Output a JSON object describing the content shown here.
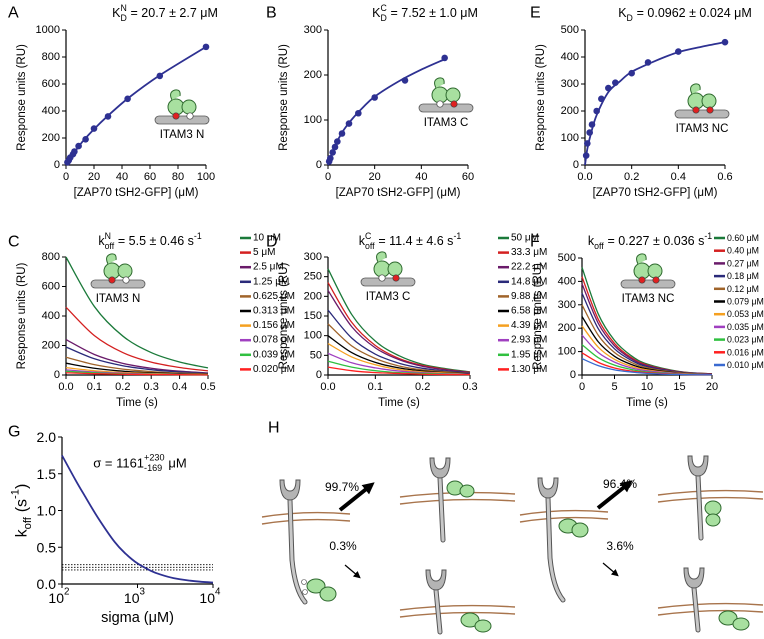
{
  "chart_data": [
    {
      "panel": "A",
      "type": "scatter",
      "title": {
        "symbol": "K",
        "sup": "N",
        "sub": "D",
        "value": "= 20.7 ± 2.7 μM"
      },
      "xlabel": "[ZAP70 tSH2-GFP] (μM)",
      "ylabel": "Response units (RU)",
      "inset_label": "ITAM3 N",
      "xlim": [
        0,
        100
      ],
      "xticks": [
        0,
        20,
        40,
        60,
        80,
        100
      ],
      "ylim": [
        0,
        1000
      ],
      "yticks": [
        0,
        200,
        400,
        600,
        800,
        1000
      ],
      "series": [
        {
          "style": "markers",
          "color": "#2e3192",
          "x": [
            1,
            2,
            3,
            5,
            6,
            9,
            14,
            20,
            30,
            44,
            67,
            100
          ],
          "values": [
            20,
            35,
            55,
            80,
            100,
            140,
            190,
            270,
            360,
            490,
            660,
            875
          ]
        },
        {
          "style": "line",
          "color": "#2e3192",
          "x": [
            0,
            10,
            20,
            30,
            45,
            67,
            100
          ],
          "values": [
            0,
            150,
            265,
            365,
            500,
            665,
            875
          ]
        }
      ]
    },
    {
      "panel": "B",
      "type": "scatter",
      "title": {
        "symbol": "K",
        "sup": "C",
        "sub": "D",
        "value": "= 7.52 ± 1.0 μM"
      },
      "xlabel": "[ZAP70 tSH2-GFP] (μM)",
      "ylabel": "Response units (RU)",
      "inset_label": "ITAM3 C",
      "xlim": [
        0,
        60
      ],
      "xticks": [
        0,
        20,
        40,
        60
      ],
      "ylim": [
        0,
        300
      ],
      "yticks": [
        0,
        100,
        200,
        300
      ],
      "series": [
        {
          "style": "markers",
          "color": "#2e3192",
          "x": [
            0.5,
            1,
            2,
            3,
            4,
            6,
            9,
            13,
            20,
            33,
            50
          ],
          "values": [
            8,
            15,
            28,
            40,
            52,
            70,
            92,
            115,
            150,
            188,
            238
          ]
        },
        {
          "style": "line",
          "color": "#2e3192",
          "x": [
            0,
            3,
            6,
            10,
            15,
            20,
            30,
            40,
            50
          ],
          "values": [
            0,
            42,
            72,
            100,
            128,
            152,
            185,
            212,
            235
          ]
        }
      ]
    },
    {
      "panel": "E",
      "type": "scatter",
      "title": {
        "symbol": "K",
        "sub": "D",
        "value": "= 0.0962 ± 0.024 μM"
      },
      "xlabel": "[ZAP70 tSH2-GFP] (μM)",
      "ylabel": "Response units (RU)",
      "inset_label": "ITAM3 NC",
      "xlim": [
        0,
        0.6
      ],
      "xticks": [
        {
          "value": 0,
          "label": "0.0"
        },
        0.2,
        0.4,
        0.6
      ],
      "ylim": [
        0,
        500
      ],
      "yticks": [
        0,
        100,
        200,
        300,
        400,
        500
      ],
      "series": [
        {
          "style": "markers",
          "color": "#2e3192",
          "x": [
            0.005,
            0.01,
            0.02,
            0.03,
            0.05,
            0.07,
            0.1,
            0.13,
            0.2,
            0.27,
            0.4,
            0.6
          ],
          "values": [
            35,
            80,
            120,
            150,
            200,
            245,
            285,
            305,
            340,
            380,
            420,
            455
          ]
        },
        {
          "style": "line",
          "color": "#2e3192",
          "x": [
            0,
            0.01,
            0.025,
            0.05,
            0.1,
            0.15,
            0.2,
            0.3,
            0.4,
            0.5,
            0.6
          ],
          "values": [
            0,
            60,
            115,
            185,
            270,
            310,
            345,
            385,
            418,
            438,
            455
          ]
        }
      ]
    },
    {
      "panel": "C",
      "type": "line",
      "title": {
        "symbol": "k",
        "sup": "N",
        "sub": "off",
        "value": "= 5.5 ± 0.46 s",
        "value_sup": "-1"
      },
      "xlabel": "Time (s)",
      "ylabel": "Response units (RU)",
      "inset_label": "ITAM3 N",
      "x": [
        0,
        0.1,
        0.2,
        0.3,
        0.4,
        0.5
      ],
      "xlim": [
        0,
        0.5
      ],
      "xticks": [
        {
          "value": 0,
          "label": "0.0"
        },
        0.1,
        0.2,
        0.3,
        0.4,
        0.5
      ],
      "ylim": [
        0,
        800
      ],
      "yticks": [
        0,
        200,
        400,
        600,
        800
      ],
      "series": [
        {
          "name": "10 μM",
          "color": "#1b7a3a",
          "values": [
            800,
            464,
            264,
            152,
            88,
            48
          ]
        },
        {
          "name": "5 μM",
          "color": "#d42020",
          "values": [
            460,
            267,
            152,
            87,
            51,
            28
          ]
        },
        {
          "name": "2.5 μM",
          "color": "#6a1b6a",
          "values": [
            240,
            139,
            79,
            46,
            26,
            14
          ]
        },
        {
          "name": "1.25 μM",
          "color": "#2a2a7a",
          "values": [
            190,
            110,
            63,
            36,
            21,
            11
          ]
        },
        {
          "name": "0.625 μM",
          "color": "#a0642a",
          "values": [
            120,
            70,
            40,
            23,
            13,
            7
          ]
        },
        {
          "name": "0.313 μM",
          "color": "#000000",
          "values": [
            80,
            46,
            26,
            15,
            9,
            5
          ]
        },
        {
          "name": "0.156 μM",
          "color": "#f5a020",
          "values": [
            50,
            29,
            17,
            10,
            6,
            3
          ]
        },
        {
          "name": "0.078 μM",
          "color": "#a040c0",
          "values": [
            35,
            20,
            12,
            7,
            4,
            2
          ]
        },
        {
          "name": "0.039 μM",
          "color": "#30c040",
          "values": [
            25,
            15,
            8,
            5,
            3,
            2
          ]
        },
        {
          "name": "0.020 μM",
          "color": "#ff2020",
          "values": [
            15,
            9,
            5,
            3,
            2,
            1
          ]
        }
      ]
    },
    {
      "panel": "D",
      "type": "line",
      "title": {
        "symbol": "k",
        "sup": "C",
        "sub": "off",
        "value": "= 11.4 ± 4.6 s",
        "value_sup": "-1"
      },
      "xlabel": "Time (s)",
      "ylabel": "Response units (RU)",
      "inset_label": "ITAM3 C",
      "x": [
        0,
        0.05,
        0.1,
        0.15,
        0.2,
        0.25,
        0.3
      ],
      "xlim": [
        0,
        0.3
      ],
      "xticks": [
        {
          "value": 0,
          "label": "0.0"
        },
        0.1,
        0.2,
        0.3
      ],
      "ylim": [
        0,
        300
      ],
      "yticks": [
        0,
        50,
        100,
        150,
        200,
        250,
        300
      ],
      "series": [
        {
          "name": "50 μM",
          "color": "#1b7a3a",
          "values": [
            270,
            154,
            86,
            49,
            27,
            16,
            8
          ]
        },
        {
          "name": "33.3 μM",
          "color": "#d42020",
          "values": [
            235,
            134,
            75,
            42,
            24,
            14,
            7
          ]
        },
        {
          "name": "22.2 μM",
          "color": "#6a1b6a",
          "values": [
            215,
            123,
            69,
            39,
            22,
            13,
            6
          ]
        },
        {
          "name": "14.8 μM",
          "color": "#2a2a7a",
          "values": [
            165,
            94,
            53,
            30,
            17,
            10,
            5
          ]
        },
        {
          "name": "9.88 μM",
          "color": "#a0642a",
          "values": [
            130,
            74,
            42,
            23,
            13,
            8,
            4
          ]
        },
        {
          "name": "6.58 μM",
          "color": "#000000",
          "values": [
            100,
            57,
            32,
            18,
            10,
            6,
            3
          ]
        },
        {
          "name": "4.39 μM",
          "color": "#f5a020",
          "values": [
            80,
            46,
            26,
            14,
            8,
            5,
            2
          ]
        },
        {
          "name": "2.93 μM",
          "color": "#a040c0",
          "values": [
            55,
            31,
            18,
            10,
            6,
            3,
            2
          ]
        },
        {
          "name": "1.95 μM",
          "color": "#30c040",
          "values": [
            35,
            20,
            11,
            6,
            4,
            2,
            1
          ]
        },
        {
          "name": "1.30 μM",
          "color": "#ff2020",
          "values": [
            20,
            11,
            6,
            4,
            2,
            1,
            1
          ]
        }
      ]
    },
    {
      "panel": "F",
      "type": "line",
      "title": {
        "symbol": "k",
        "sub": "off",
        "value": "= 0.227 ± 0.036 s",
        "value_sup": "-1"
      },
      "xlabel": "Time (s)",
      "ylabel": "Response units (RU)",
      "inset_label": "ITAM3 NC",
      "x": [
        0,
        2.5,
        5,
        7.5,
        10,
        15,
        20
      ],
      "xlim": [
        0,
        20
      ],
      "xticks": [
        0,
        5,
        10,
        15,
        20
      ],
      "ylim": [
        0,
        500
      ],
      "yticks": [
        0,
        100,
        200,
        300,
        400,
        500
      ],
      "series": [
        {
          "name": "0.60 μM",
          "color": "#1b7a3a",
          "values": [
            460,
            261,
            148,
            84,
            47,
            15,
            5
          ]
        },
        {
          "name": "0.40 μM",
          "color": "#d42020",
          "values": [
            420,
            238,
            135,
            76,
            43,
            14,
            5
          ]
        },
        {
          "name": "0.27 μM",
          "color": "#6a1b6a",
          "values": [
            390,
            221,
            125,
            71,
            40,
            13,
            4
          ]
        },
        {
          "name": "0.18 μM",
          "color": "#2a2a7a",
          "values": [
            350,
            198,
            112,
            64,
            36,
            12,
            4
          ]
        },
        {
          "name": "0.12 μM",
          "color": "#a0642a",
          "values": [
            300,
            170,
            96,
            55,
            31,
            10,
            3
          ]
        },
        {
          "name": "0.079 μM",
          "color": "#000000",
          "values": [
            250,
            142,
            80,
            46,
            26,
            8,
            3
          ]
        },
        {
          "name": "0.053 μM",
          "color": "#f5a020",
          "values": [
            210,
            119,
            67,
            38,
            22,
            7,
            2
          ]
        },
        {
          "name": "0.035 μM",
          "color": "#a040c0",
          "values": [
            170,
            96,
            55,
            31,
            18,
            6,
            2
          ]
        },
        {
          "name": "0.023 μM",
          "color": "#30c040",
          "values": [
            130,
            74,
            42,
            24,
            13,
            4,
            1
          ]
        },
        {
          "name": "0.016 μM",
          "color": "#ff2020",
          "values": [
            95,
            54,
            30,
            17,
            10,
            3,
            1
          ]
        },
        {
          "name": "0.010 μM",
          "color": "#3a6ad0",
          "values": [
            70,
            40,
            22,
            13,
            7,
            2,
            1
          ]
        }
      ]
    },
    {
      "panel": "G",
      "type": "line",
      "xscale": "log",
      "annotation": {
        "symbol": "σ = 1161",
        "sup": "+230",
        "sub": "-169",
        "value": "μM"
      },
      "xlabel": "sigma (μM)",
      "ylabel": {
        "symbol": "k",
        "sub": "off",
        "value": "(s",
        "value_sup": "-1",
        "tail": ")"
      },
      "xlim": [
        100,
        10000
      ],
      "xticks": [
        {
          "value": 100,
          "label": "10",
          "exponent": "2"
        },
        {
          "value": 1000,
          "label": "10",
          "exponent": "3"
        },
        {
          "value": 10000,
          "label": "10",
          "exponent": "4"
        }
      ],
      "ylim": [
        0,
        2
      ],
      "yticks": [
        {
          "value": 0,
          "label": "0.0"
        },
        0.5,
        {
          "value": 1,
          "label": "1.0"
        },
        1.5,
        {
          "value": 2,
          "label": "2.0"
        }
      ],
      "reference_lines": [
        0.191,
        0.227,
        0.263
      ],
      "series": [
        {
          "style": "line",
          "color": "#2e3192",
          "x": [
            100,
            150,
            200,
            300,
            500,
            700,
            1000,
            1500,
            2000,
            3000,
            5000,
            7000,
            10000
          ],
          "values": [
            1.75,
            1.42,
            1.2,
            0.9,
            0.57,
            0.41,
            0.28,
            0.18,
            0.13,
            0.08,
            0.045,
            0.03,
            0.02
          ]
        }
      ]
    }
  ],
  "diagram": {
    "panel": "H",
    "arrows": [
      {
        "label": "99.7%"
      },
      {
        "label": "0.3%"
      },
      {
        "label": "96.4%"
      },
      {
        "label": "3.6%"
      }
    ]
  }
}
